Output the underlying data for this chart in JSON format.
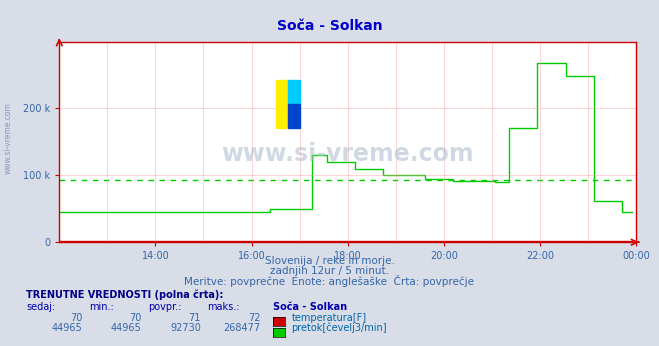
{
  "title": "Soča - Solkan",
  "bg_color": "#d8dde8",
  "plot_bg_color": "#ffffff",
  "grid_color": "#ff9999",
  "avg_line_color": "#00cc00",
  "avg_line_value": 92730,
  "temperature_color": "#cc0000",
  "flow_color": "#00cc00",
  "title_color": "#0000cc",
  "axis_color": "#cc0000",
  "text_color": "#3366aa",
  "subtitle1": "Slovenija / reke in morje.",
  "subtitle2": "zadnjih 12ur / 5 minut.",
  "subtitle3": "Meritve: povprečne  Enote: anglešaške  Črta: povprečje",
  "table_header": "TRENUTNE VREDNOSTI (polna črta):",
  "col_headers": [
    "sedaj:",
    "min.:",
    "povpr.:",
    "maks.:",
    "Soča - Solkan"
  ],
  "temp_row": [
    "70",
    "70",
    "71",
    "72",
    "temperatura[F]"
  ],
  "flow_row": [
    "44965",
    "44965",
    "92730",
    "268477",
    "pretok[čevelj3/min]"
  ],
  "ylim": [
    0,
    300000
  ],
  "yticks": [
    0,
    100000,
    200000
  ],
  "ytick_labels": [
    "0",
    "100 k",
    "200 k"
  ],
  "xtick_labels": [
    "14:00",
    "16:00",
    "18:00",
    "20:00",
    "22:00",
    "00:00"
  ],
  "xtick_positions": [
    2,
    4,
    6,
    8,
    10,
    12
  ],
  "watermark": "www.si-vreme.com",
  "side_label": "www.si-vreme.com",
  "flow_data": [
    44965,
    44965,
    44965,
    44965,
    44965,
    44965,
    44965,
    44965,
    44965,
    44965,
    44965,
    44965,
    44965,
    44965,
    44965,
    44965,
    44965,
    44965,
    44965,
    44965,
    44965,
    44965,
    44965,
    44965,
    44965,
    44965,
    44965,
    44965,
    44965,
    44965,
    44965,
    44965,
    44965,
    44965,
    44965,
    44965,
    44965,
    44965,
    44965,
    44965,
    44965,
    44965,
    44965,
    44965,
    44965,
    44965,
    44965,
    44965,
    44965,
    44965,
    44965,
    44965,
    44965,
    44965,
    44965,
    44965,
    44965,
    44965,
    44965,
    44965,
    49000,
    49000,
    49000,
    49000,
    49000,
    49000,
    49000,
    49000,
    49000,
    49000,
    49000,
    49000,
    130000,
    130000,
    130000,
    130000,
    120000,
    120000,
    120000,
    120000,
    120000,
    120000,
    120000,
    120000,
    110000,
    110000,
    110000,
    110000,
    110000,
    110000,
    110000,
    110000,
    100000,
    100000,
    100000,
    100000,
    100000,
    100000,
    100000,
    100000,
    100000,
    100000,
    100000,
    100000,
    95000,
    95000,
    95000,
    95000,
    95000,
    95000,
    95000,
    95000,
    92000,
    92000,
    92000,
    92000,
    92000,
    92000,
    92000,
    92000,
    92000,
    92000,
    92000,
    92000,
    90000,
    90000,
    90000,
    90000,
    170000,
    170000,
    170000,
    170000,
    170000,
    170000,
    170000,
    170000,
    268477,
    268477,
    268477,
    268477,
    268477,
    268477,
    268477,
    268477,
    248000,
    248000,
    248000,
    248000,
    248000,
    248000,
    248000,
    248000,
    62000,
    62000,
    62000,
    62000,
    62000,
    62000,
    62000,
    62000,
    44965,
    44965,
    44965,
    44965
  ],
  "temp_data_y": 1500
}
